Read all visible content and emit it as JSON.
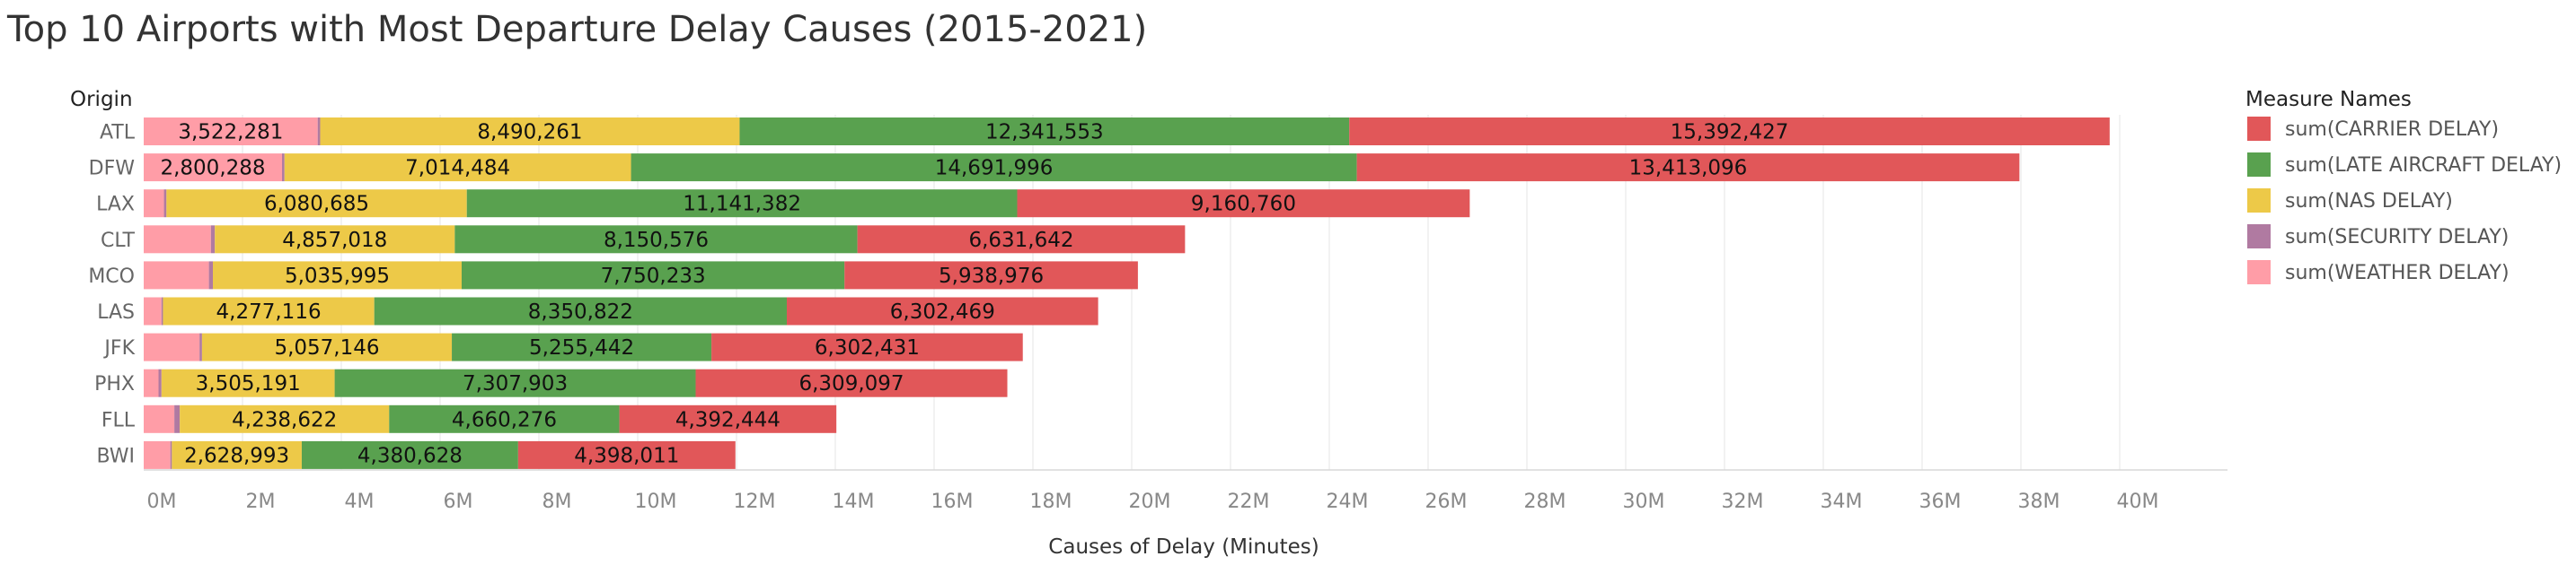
{
  "chart_data": {
    "type": "bar",
    "orientation": "horizontal",
    "stacked": true,
    "title": "Top 10 Airports with Most Departure Delay Causes (2015-2021)",
    "xlabel": "Causes of Delay (Minutes)",
    "ylabel": "Origin",
    "xlim": [
      0,
      42000000
    ],
    "x_ticks": [
      0,
      2000000,
      4000000,
      6000000,
      8000000,
      10000000,
      12000000,
      14000000,
      16000000,
      18000000,
      20000000,
      22000000,
      24000000,
      26000000,
      28000000,
      30000000,
      32000000,
      34000000,
      36000000,
      38000000,
      40000000
    ],
    "x_tick_labels": [
      "0M",
      "2M",
      "4M",
      "6M",
      "8M",
      "10M",
      "12M",
      "14M",
      "16M",
      "18M",
      "20M",
      "22M",
      "24M",
      "26M",
      "28M",
      "30M",
      "32M",
      "34M",
      "36M",
      "38M",
      "40M"
    ],
    "grid": "vertical",
    "legend_title": "Measure Names",
    "legend_position": "right",
    "categories": [
      "ATL",
      "DFW",
      "LAX",
      "CLT",
      "MCO",
      "LAS",
      "JFK",
      "PHX",
      "FLL",
      "BWI"
    ],
    "stack_order": [
      "sum(WEATHER DELAY)",
      "sum(SECURITY DELAY)",
      "sum(NAS DELAY)",
      "sum(LATE AIRCRAFT DELAY)",
      "sum(CARRIER DELAY)"
    ],
    "series": [
      {
        "name": "sum(CARRIER DELAY)",
        "color": "#e15759",
        "values": [
          15392427,
          13413096,
          9160760,
          6631642,
          5938976,
          6302469,
          6302431,
          6309097,
          4392444,
          4398011
        ],
        "labels": [
          "15,392,427",
          "13,413,096",
          "9,160,760",
          "6,631,642",
          "5,938,976",
          "6,302,469",
          "6,302,431",
          "6,309,097",
          "4,392,444",
          "4,398,011"
        ]
      },
      {
        "name": "sum(LATE AIRCRAFT DELAY)",
        "color": "#59a14f",
        "values": [
          12341553,
          14691996,
          11141382,
          8150576,
          7750233,
          8350822,
          5255442,
          7307903,
          4660276,
          4380628
        ],
        "labels": [
          "12,341,553",
          "14,691,996",
          "11,141,382",
          "8,150,576",
          "7,750,233",
          "8,350,822",
          "5,255,442",
          "7,307,903",
          "4,660,276",
          "4,380,628"
        ]
      },
      {
        "name": "sum(NAS DELAY)",
        "color": "#edc948",
        "values": [
          8490261,
          7014484,
          6080685,
          4857018,
          5035995,
          4277116,
          5057146,
          3505191,
          4238622,
          2628993
        ],
        "labels": [
          "8,490,261",
          "7,014,484",
          "6,080,685",
          "4,857,018",
          "5,035,995",
          "4,277,116",
          "5,057,146",
          "3,505,191",
          "4,238,622",
          "2,628,993"
        ]
      },
      {
        "name": "sum(SECURITY DELAY)",
        "color": "#b07aa1",
        "values": [
          50000,
          50000,
          50000,
          80000,
          80000,
          30000,
          50000,
          60000,
          110000,
          30000
        ],
        "labels": [
          "",
          "",
          "",
          "",
          "",
          "",
          "",
          "",
          "",
          ""
        ]
      },
      {
        "name": "sum(WEATHER DELAY)",
        "color": "#ff9da7",
        "values": [
          3522281,
          2800288,
          410000,
          1360000,
          1320000,
          360000,
          1130000,
          300000,
          620000,
          540000
        ],
        "labels": [
          "3,522,281",
          "2,800,288",
          "",
          "",
          "",
          "",
          "",
          "",
          "",
          ""
        ]
      }
    ]
  }
}
